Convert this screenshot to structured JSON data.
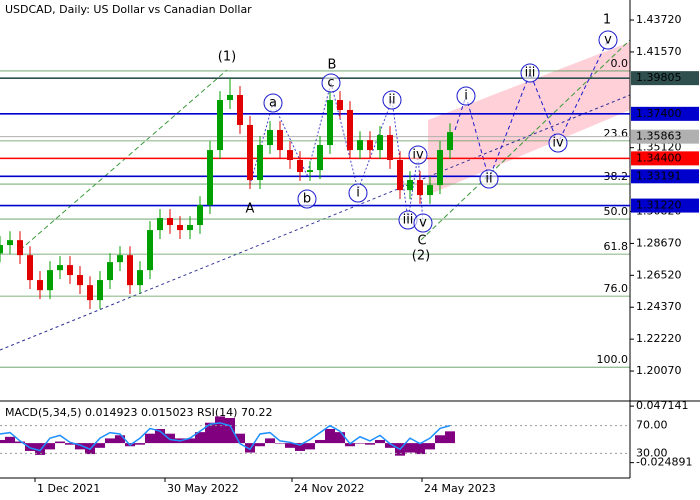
{
  "chart_data": {
    "type": "candlestick",
    "title": "USDCAD, Daily:  US Dollar vs Canadian Dollar",
    "x": [
      -35,
      -25,
      -15,
      -5,
      5,
      15,
      25,
      35,
      45,
      55,
      65,
      75,
      85,
      95,
      105,
      115,
      125,
      135,
      145,
      155,
      165,
      175,
      185,
      195,
      205,
      215,
      225,
      235,
      245,
      255,
      265,
      275,
      285,
      295,
      305,
      315,
      325,
      335,
      345,
      355,
      365,
      375,
      385,
      395,
      405,
      415
    ],
    "open": [
      1.28,
      1.2856,
      1.2889,
      1.2788,
      1.262,
      1.2552,
      1.2687,
      1.2721,
      1.2654,
      1.2586,
      1.2485,
      1.262,
      1.2741,
      1.2788,
      1.2586,
      1.2687,
      1.2957,
      1.3038,
      1.2991,
      1.2957,
      1.2991,
      1.3125,
      1.3496,
      1.3833,
      1.3867,
      1.3665,
      1.3294,
      1.353,
      1.3631,
      1.3496,
      1.3429,
      1.3348,
      1.3361,
      1.353,
      1.3833,
      1.3766,
      1.3496,
      1.3563,
      1.3496,
      1.3597,
      1.3429,
      1.3226,
      1.3294,
      1.3193,
      1.326,
      1.3496
    ],
    "high": [
      1.2916,
      1.2949,
      1.2949,
      1.2848,
      1.268,
      1.2747,
      1.2781,
      1.2781,
      1.2714,
      1.2646,
      1.268,
      1.2801,
      1.2848,
      1.2848,
      1.2747,
      1.3017,
      1.3098,
      1.3098,
      1.3051,
      1.3051,
      1.3185,
      1.3556,
      1.3893,
      1.3977,
      1.3927,
      1.3725,
      1.359,
      1.3691,
      1.3691,
      1.3556,
      1.3489,
      1.3421,
      1.359,
      1.3893,
      1.3893,
      1.3826,
      1.3623,
      1.3623,
      1.3657,
      1.3657,
      1.3489,
      1.3354,
      1.3354,
      1.332,
      1.3556,
      1.3677
    ],
    "low": [
      1.274,
      1.2796,
      1.2728,
      1.256,
      1.2492,
      1.2492,
      1.2627,
      1.2594,
      1.2526,
      1.2425,
      1.2425,
      1.256,
      1.2681,
      1.2526,
      1.2526,
      1.2627,
      1.2897,
      1.2931,
      1.2897,
      1.2897,
      1.2931,
      1.3065,
      1.3436,
      1.3773,
      1.3605,
      1.3234,
      1.3234,
      1.347,
      1.3436,
      1.3369,
      1.3288,
      1.3288,
      1.3301,
      1.347,
      1.3706,
      1.3436,
      1.3436,
      1.3436,
      1.3436,
      1.3369,
      1.3166,
      1.3166,
      1.3133,
      1.3133,
      1.32,
      1.3436
    ],
    "close": [
      1.2856,
      1.2889,
      1.2788,
      1.262,
      1.2552,
      1.2687,
      1.2721,
      1.2654,
      1.2586,
      1.2485,
      1.262,
      1.2741,
      1.2788,
      1.2586,
      1.2687,
      1.2957,
      1.3038,
      1.2991,
      1.2957,
      1.2991,
      1.3125,
      1.3496,
      1.3833,
      1.3867,
      1.3665,
      1.3294,
      1.353,
      1.3631,
      1.3496,
      1.3429,
      1.3348,
      1.3361,
      1.353,
      1.3833,
      1.3766,
      1.3496,
      1.3563,
      1.3496,
      1.3597,
      1.3429,
      1.3226,
      1.3294,
      1.3193,
      1.326,
      1.3496,
      1.3617
    ],
    "up_color": "#00a000",
    "down_color": "#e00000",
    "xlim": [
      -35,
      595
    ],
    "xticks": [
      {
        "value": 0,
        "label": "1 Dec 2021"
      },
      {
        "value": 130,
        "label": "30 May 2022"
      },
      {
        "value": 257,
        "label": "24 Nov 2022"
      },
      {
        "value": 387,
        "label": "24 May 2023"
      }
    ],
    "ylim": [
      1.1812,
      1.4507
    ],
    "yticks": [
      {
        "value": 1.4372,
        "label": "1.43720"
      },
      {
        "value": 1.4157,
        "label": "1.41570"
      },
      {
        "value": 1.3512,
        "label": "1.35120"
      },
      {
        "value": 1.3082,
        "label": "1.30820"
      },
      {
        "value": 1.2867,
        "label": "1.28670"
      },
      {
        "value": 1.2652,
        "label": "1.26520"
      },
      {
        "value": 1.2437,
        "label": "1.24370"
      },
      {
        "value": 1.2222,
        "label": "1.22220"
      },
      {
        "value": 1.2007,
        "label": "1.20070"
      }
    ],
    "levels": [
      {
        "value": 1.39805,
        "label": "1.39805",
        "color": "#2f4f4f"
      },
      {
        "value": 1.374,
        "label": "1.37400",
        "color": "#0000cd"
      },
      {
        "value": 1.35863,
        "label": "1.35863",
        "color": "#b0b0b0"
      },
      {
        "value": 1.344,
        "label": "1.34400",
        "color": "#ff0000"
      },
      {
        "value": 1.33191,
        "label": "1.33191",
        "color": "#0000cd"
      },
      {
        "value": 1.3122,
        "label": "1.31220",
        "color": "#0000cd"
      }
    ],
    "fib_levels": {
      "labels": [
        "0.0",
        "23.6",
        "38.2",
        "50.0",
        "61.8",
        "76.0",
        "100.0"
      ],
      "prices": [
        1.4029,
        1.3558,
        1.3267,
        1.3031,
        1.2795,
        1.2512,
        1.2033
      ],
      "color": "#5a9a5a"
    },
    "wave_labels": [
      {
        "text": "1",
        "color": "#cc0000",
        "style": "big"
      },
      {
        "text": "v",
        "color": "#1a1acc",
        "style": "circle"
      },
      {
        "text": "(1)",
        "color": "#3a9a3a",
        "style": "plain"
      },
      {
        "text": "(2)",
        "color": "#3a9a3a",
        "style": "plain"
      },
      {
        "text": "A",
        "color": "#a02020",
        "style": "plain"
      },
      {
        "text": "B",
        "color": "#a02020",
        "style": "plain"
      },
      {
        "text": "C",
        "color": "#a02020",
        "style": "plain"
      },
      {
        "text": "a",
        "color": "#1a1acc",
        "style": "circle"
      },
      {
        "text": "b",
        "color": "#1a1acc",
        "style": "circle"
      },
      {
        "text": "c",
        "color": "#1a1acc",
        "style": "circle"
      },
      {
        "text": "i",
        "color": "#1a1acc",
        "style": "circle"
      },
      {
        "text": "ii",
        "color": "#1a1acc",
        "style": "circle"
      },
      {
        "text": "iii",
        "color": "#1a1acc",
        "style": "circle"
      },
      {
        "text": "iv",
        "color": "#1a1acc",
        "style": "circle"
      },
      {
        "text": "v",
        "color": "#1a1acc",
        "style": "circle"
      },
      {
        "text": "i",
        "color": "#1a1acc",
        "style": "circle"
      },
      {
        "text": "ii",
        "color": "#1a1acc",
        "style": "circle"
      },
      {
        "text": "iii",
        "color": "#1a1acc",
        "style": "circle"
      },
      {
        "text": "iv",
        "color": "#1a1acc",
        "style": "circle"
      }
    ],
    "indicator": {
      "header": "MACD(5,34,5) 0.014923 0.015023 RSI(14) 70.22",
      "macd": [
        0.004,
        0.008,
        0.002,
        -0.01,
        -0.015,
        -0.008,
        0.002,
        -0.002,
        -0.008,
        -0.014,
        -0.006,
        0.006,
        0.01,
        -0.004,
        -0.002,
        0.012,
        0.018,
        0.012,
        0.006,
        0.006,
        0.014,
        0.026,
        0.034,
        0.032,
        0.012,
        -0.012,
        -0.004,
        0.006,
        0.0,
        -0.006,
        -0.01,
        -0.008,
        0.004,
        0.018,
        0.014,
        -0.004,
        0.0,
        -0.002,
        0.004,
        -0.006,
        -0.016,
        -0.012,
        -0.014,
        -0.008,
        0.01,
        0.015
      ],
      "macd_color": "#800080",
      "macd_ylim": [
        -0.0432,
        0.0524
      ],
      "macd_yticks": [
        0.047141,
        -0.024891
      ],
      "rsi": [
        58,
        60,
        48,
        38,
        34,
        52,
        56,
        46,
        42,
        36,
        52,
        60,
        58,
        42,
        52,
        66,
        62,
        50,
        48,
        52,
        62,
        72,
        74,
        70,
        44,
        36,
        58,
        60,
        48,
        46,
        42,
        50,
        60,
        70,
        62,
        44,
        54,
        48,
        56,
        44,
        36,
        52,
        44,
        52,
        66,
        70
      ],
      "rsi_color": "#1e90ff",
      "rsi_ylim": [
        -4.0,
        104.1
      ],
      "rsi_yticks": [
        {
          "value": 70,
          "label": "70.00"
        },
        {
          "value": 30,
          "label": "30.00"
        }
      ]
    }
  }
}
